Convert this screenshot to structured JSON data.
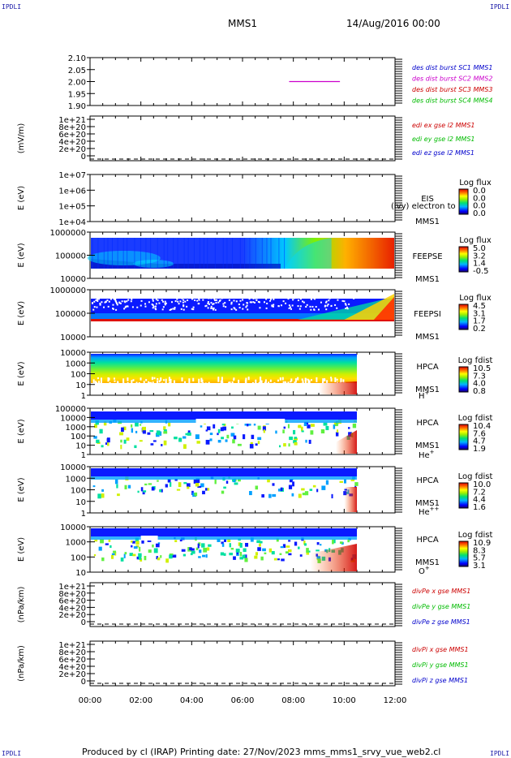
{
  "corner_label": "IPDLI",
  "header": {
    "mission": "MMS1",
    "date": "14/Aug/2016 00:00"
  },
  "footer": "Produced by cl (IRAP)   Printing date: 27/Nov/2023   mms_mms1_srvy_vue_web2.cl",
  "chart_data": [
    {
      "type": "line",
      "panel": "des dist burst",
      "yticks": [
        "2.10",
        "2.05",
        "2.00",
        "1.95",
        "1.90"
      ],
      "ylim": [
        1.9,
        2.1
      ],
      "series": [
        {
          "name": "des dist burst SC1 MMS1",
          "color": "#0000cc",
          "x": [],
          "values": []
        },
        {
          "name": "des dist burst SC2 MMS2",
          "color": "#cc00cc",
          "x": [
            "07:50",
            "09:50"
          ],
          "values": [
            2.0,
            2.0
          ]
        },
        {
          "name": "des dist burst SC3 MMS3",
          "color": "#cc0000",
          "x": [],
          "values": []
        },
        {
          "name": "des dist burst SC4 MMS4",
          "color": "#00bb00",
          "x": [],
          "values": []
        }
      ]
    },
    {
      "type": "line",
      "panel": "edi",
      "ylabel": "(mV/m)",
      "yticks": [
        "1e+21",
        "8e+20",
        "6e+20",
        "4e+20",
        "2e+20",
        "0"
      ],
      "series": [
        {
          "name": "edi ex gse l2 MMS1",
          "color": "#cc0000"
        },
        {
          "name": "edi ey gse l2 MMS1",
          "color": "#00bb00"
        },
        {
          "name": "edi ez gse l2 MMS1",
          "color": "#0000cc"
        }
      ]
    },
    {
      "type": "heatmap",
      "panel": "EIS",
      "ylabel": "E (eV)",
      "yticks": [
        "1e+07",
        "1e+06",
        "1e+05",
        "1e+04"
      ],
      "yscale": "log",
      "ylim": [
        10000,
        10000000
      ],
      "labels": [
        "EIS",
        "MMS1"
      ],
      "overlay_text": "(lvy) electron to",
      "colorbar": {
        "title": "Log flux",
        "ticks": [
          "0.0",
          "0.0",
          "0.0",
          "0.0"
        ]
      }
    },
    {
      "type": "heatmap",
      "panel": "FEEPSE",
      "ylabel": "E (eV)",
      "yticks": [
        "1000000",
        "100000",
        "10000"
      ],
      "yscale": "log",
      "ylim": [
        10000,
        1000000
      ],
      "labels": [
        "FEEPSE",
        "MMS1"
      ],
      "colorbar": {
        "title": "Log flux",
        "ticks": [
          "5.0",
          "3.2",
          "1.4",
          "-0.5"
        ]
      }
    },
    {
      "type": "heatmap",
      "panel": "FEEPSI",
      "ylabel": "E (eV)",
      "yticks": [
        "1000000",
        "100000",
        "10000"
      ],
      "yscale": "log",
      "ylim": [
        10000,
        1000000
      ],
      "labels": [
        "FEEPSI",
        "MMS1"
      ],
      "colorbar": {
        "title": "Log flux",
        "ticks": [
          "4.5",
          "3.1",
          "1.7",
          "0.2"
        ]
      }
    },
    {
      "type": "heatmap",
      "panel": "HPCA H+",
      "ylabel": "E (eV)",
      "yticks": [
        "10000",
        "1000",
        "100",
        "10",
        "1"
      ],
      "yscale": "log",
      "ylim": [
        1,
        40000
      ],
      "labels": [
        "HPCA",
        "MMS1"
      ],
      "species": "H",
      "species_charge": "+",
      "colorbar": {
        "title": "Log fdist",
        "ticks": [
          "10.5",
          "7.3",
          "4.0",
          "0.8"
        ]
      }
    },
    {
      "type": "heatmap",
      "panel": "HPCA He+",
      "ylabel": "E (eV)",
      "yticks": [
        "100000",
        "10000",
        "1000",
        "100",
        "10",
        "1"
      ],
      "yscale": "log",
      "ylim": [
        1,
        100000
      ],
      "labels": [
        "HPCA",
        "MMS1"
      ],
      "species": "He",
      "species_charge": "+",
      "colorbar": {
        "title": "Log fdist",
        "ticks": [
          "10.4",
          "7.6",
          "4.7",
          "1.9"
        ]
      }
    },
    {
      "type": "heatmap",
      "panel": "HPCA He++",
      "ylabel": "E (eV)",
      "yticks": [
        "10000",
        "1000",
        "100",
        "10",
        "1"
      ],
      "yscale": "log",
      "ylim": [
        1,
        40000
      ],
      "labels": [
        "HPCA",
        "MMS1"
      ],
      "species": "He",
      "species_charge": "++",
      "colorbar": {
        "title": "Log fdist",
        "ticks": [
          "10.0",
          "7.2",
          "4.4",
          "1.6"
        ]
      }
    },
    {
      "type": "heatmap",
      "panel": "HPCA O+",
      "ylabel": "E (eV)",
      "yticks": [
        "10000",
        "1000",
        "100",
        "10"
      ],
      "yscale": "log",
      "ylim": [
        3,
        40000
      ],
      "labels": [
        "HPCA",
        "MMS1"
      ],
      "species": "O",
      "species_charge": "+",
      "colorbar": {
        "title": "Log fdist",
        "ticks": [
          "10.9",
          "8.3",
          "5.7",
          "3.1"
        ]
      }
    },
    {
      "type": "line",
      "panel": "divPe",
      "ylabel": "(nPa/km)",
      "yticks": [
        "1e+21",
        "8e+20",
        "6e+20",
        "4e+20",
        "2e+20",
        "0"
      ],
      "series": [
        {
          "name": "divPe x gse MMS1",
          "color": "#cc0000"
        },
        {
          "name": "divPe y gse MMS1",
          "color": "#00bb00"
        },
        {
          "name": "divPe z gse MMS1",
          "color": "#0000cc"
        }
      ]
    },
    {
      "type": "line",
      "panel": "divPi",
      "ylabel": "(nPa/km)",
      "yticks": [
        "1e+21",
        "8e+20",
        "6e+20",
        "4e+20",
        "2e+20",
        "0"
      ],
      "series": [
        {
          "name": "divPi x gse MMS1",
          "color": "#cc0000"
        },
        {
          "name": "divPi y gse MMS1",
          "color": "#00bb00"
        },
        {
          "name": "divPi z gse MMS1",
          "color": "#0000cc"
        }
      ]
    }
  ],
  "xaxis": {
    "ticks": [
      "00:00",
      "02:00",
      "04:00",
      "06:00",
      "08:00",
      "10:00",
      "12:00"
    ],
    "xlim": [
      "00:00",
      "12:00"
    ]
  }
}
